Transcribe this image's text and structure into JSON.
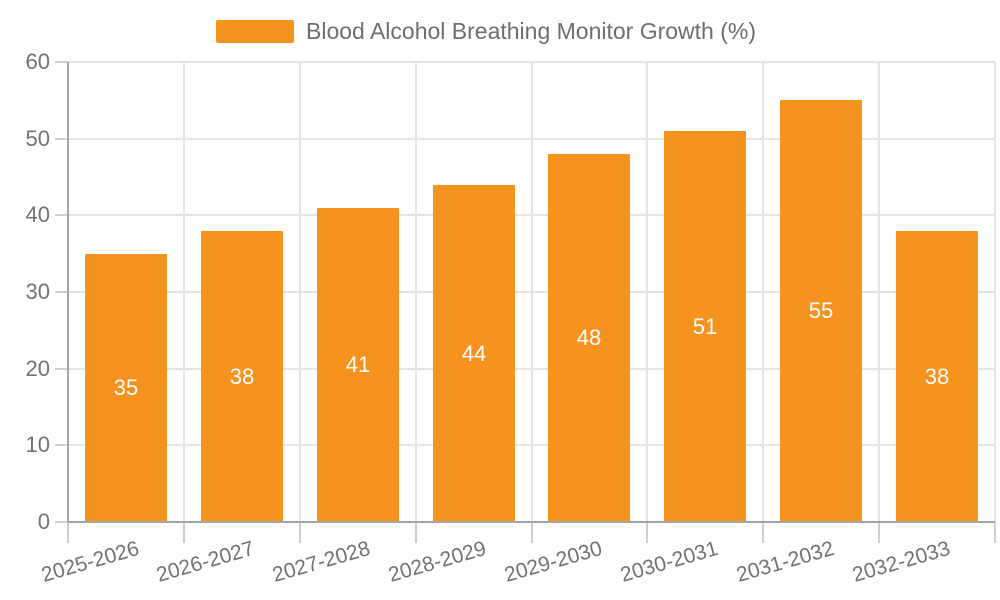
{
  "chart_data": {
    "type": "bar",
    "title": "Blood Alcohol Breathing Monitor Growth (%)",
    "legend": [
      "Blood Alcohol Breathing Monitor Growth (%)"
    ],
    "legend_position": "top-center",
    "categories": [
      "2025-2026",
      "2026-2027",
      "2027-2028",
      "2028-2029",
      "2029-2030",
      "2030-2031",
      "2031-2032",
      "2032-2033"
    ],
    "values": [
      35,
      38,
      41,
      44,
      48,
      51,
      55,
      38
    ],
    "value_labels_shown": true,
    "xlabel": "",
    "ylabel": "",
    "ylim": [
      0,
      60
    ],
    "yticks": [
      0,
      10,
      20,
      30,
      40,
      50,
      60
    ],
    "grid": "both",
    "x_tick_label_rotation_deg": -16,
    "bar_color": "#F6931E",
    "value_label_color": "#FFFFFF",
    "axis_text_color": "#737373",
    "legend_text_color": "#6E6E6E",
    "axis_line_color": "#A5A5A5",
    "gridline_color": "#E4E4E4",
    "tick_color": "#CFCFCF",
    "background_color": "#FFFFFF"
  }
}
